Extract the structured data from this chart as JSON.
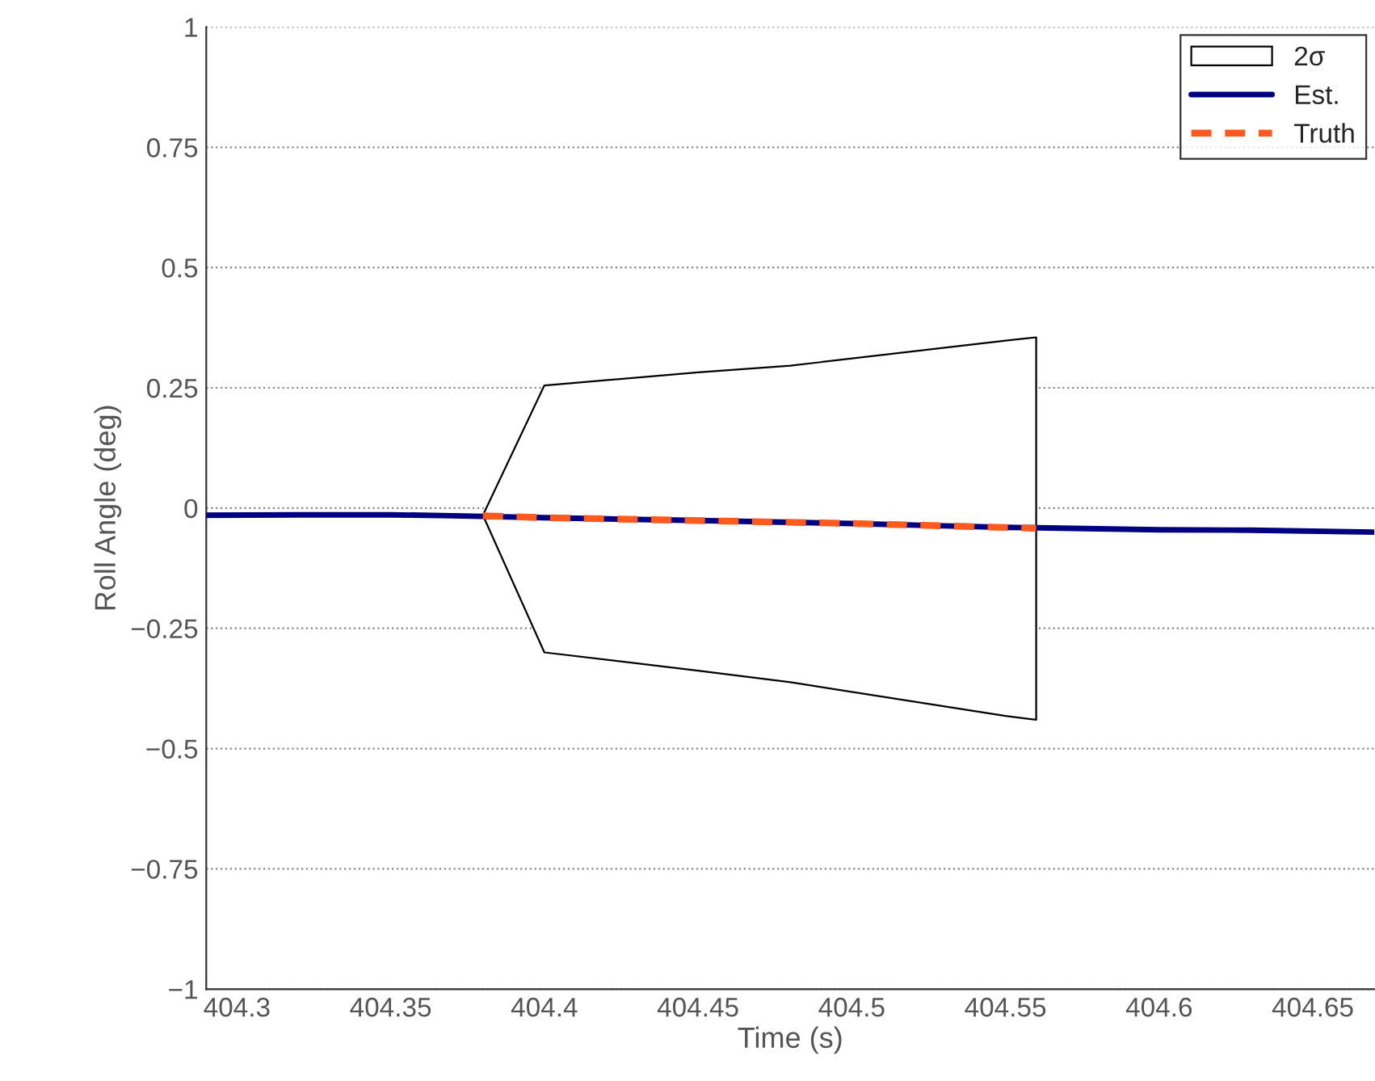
{
  "chart_data": {
    "type": "line",
    "xlabel": "Time (s)",
    "ylabel": "Roll Angle (deg)",
    "series": [
      {
        "name": "2σ",
        "color": "#000000",
        "x": [
          404.38,
          404.4,
          404.45,
          404.48,
          404.55,
          404.56
        ],
        "values": [
          null,
          null,
          null,
          null,
          null,
          null
        ],
        "upper": [
          -0.015,
          0.255,
          0.282,
          0.296,
          0.348,
          0.355
        ],
        "lower": [
          -0.015,
          -0.3,
          -0.338,
          -0.362,
          -0.432,
          -0.44
        ]
      },
      {
        "name": "Est.",
        "line_style": "solid",
        "color": "#000080",
        "x": [
          404.29,
          404.32,
          404.35,
          404.37,
          404.4,
          404.45,
          404.5,
          404.53,
          404.55,
          404.58,
          404.6,
          404.63,
          404.67
        ],
        "values": [
          -0.015,
          -0.014,
          -0.014,
          -0.016,
          -0.02,
          -0.026,
          -0.032,
          -0.037,
          -0.04,
          -0.043,
          -0.045,
          -0.046,
          -0.05
        ]
      },
      {
        "name": "Truth",
        "line_style": "dashed",
        "color": "#ff5a1e",
        "x": [
          404.38,
          404.4,
          404.45,
          404.5,
          404.53,
          404.56
        ],
        "values": [
          -0.016,
          -0.02,
          -0.026,
          -0.032,
          -0.037,
          -0.042
        ]
      }
    ],
    "xlim": [
      404.29,
      404.67
    ],
    "xticks": [
      404.3,
      404.35,
      404.4,
      404.45,
      404.5,
      404.55,
      404.6,
      404.65
    ],
    "ylim": [
      -1,
      1
    ],
    "yticks": [
      {
        "value": -1,
        "label": "−1"
      },
      {
        "value": -0.75,
        "label": "−0.75"
      },
      {
        "value": -0.5,
        "label": "−0.5"
      },
      {
        "value": -0.25,
        "label": "−0.25"
      },
      0,
      0.25,
      0.5,
      0.75,
      1
    ],
    "grid": "y",
    "legend": "top right"
  }
}
